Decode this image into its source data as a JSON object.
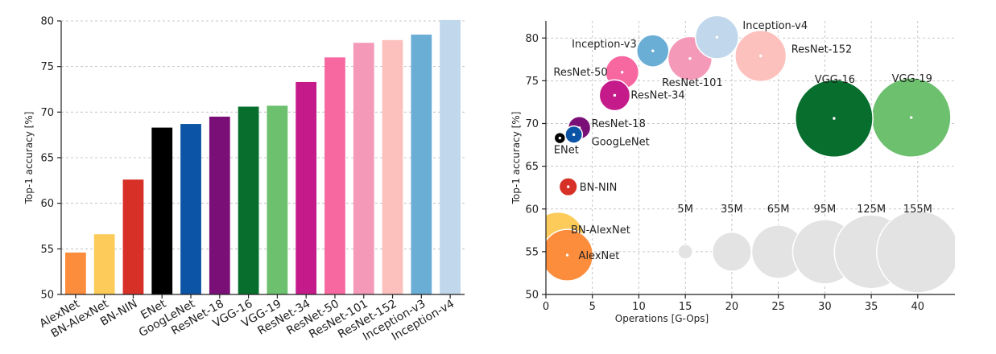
{
  "chart_data": [
    {
      "type": "bar",
      "xlabel": "",
      "ylabel": "Top-1 accuracy [%]",
      "ylim": [
        50,
        80
      ],
      "yticks": [
        50,
        55,
        60,
        65,
        70,
        75,
        80
      ],
      "grid": true,
      "categories": [
        "AlexNet",
        "BN-AlexNet",
        "BN-NIN",
        "ENet",
        "GoogLeNet",
        "ResNet-18",
        "VGG-16",
        "VGG-19",
        "ResNet-34",
        "ResNet-50",
        "ResNet-101",
        "ResNet-152",
        "Inception-v3",
        "Inception-v4"
      ],
      "values": [
        54.6,
        56.6,
        62.6,
        68.3,
        68.7,
        69.5,
        70.6,
        70.7,
        73.3,
        76.0,
        77.6,
        77.9,
        78.5,
        80.1
      ],
      "colors": [
        "#fb8d3d",
        "#fccb59",
        "#d73027",
        "#000000",
        "#0c54a5",
        "#7b0f78",
        "#076e2d",
        "#6cc06e",
        "#c51b8a",
        "#f768a1",
        "#f49ab8",
        "#fcc1bd",
        "#6aaed6",
        "#c1d8ec"
      ]
    },
    {
      "type": "scatter",
      "xlabel": "Operations [G-Ops]",
      "ylabel": "Top-1 accuracy [%]",
      "xlim": [
        0,
        44
      ],
      "ylim": [
        50,
        82
      ],
      "xticks": [
        0,
        5,
        10,
        15,
        20,
        25,
        30,
        35,
        40
      ],
      "yticks": [
        50,
        55,
        60,
        65,
        70,
        75,
        80
      ],
      "grid": true,
      "size_encoding": "parameters",
      "points": [
        {
          "name": "AlexNet",
          "x": 2.3,
          "y": 54.6,
          "params_m": 61,
          "color": "#fb8d3d"
        },
        {
          "name": "BN-AlexNet",
          "x": 1.3,
          "y": 56.6,
          "params_m": 62,
          "color": "#fccb59"
        },
        {
          "name": "BN-NIN",
          "x": 2.4,
          "y": 62.6,
          "params_m": 7.6,
          "color": "#d73027"
        },
        {
          "name": "ENet",
          "x": 1.5,
          "y": 68.3,
          "params_m": 0.4,
          "color": "#000000"
        },
        {
          "name": "GoogLeNet",
          "x": 3.0,
          "y": 68.7,
          "params_m": 6.8,
          "color": "#0c54a5"
        },
        {
          "name": "ResNet-18",
          "x": 3.6,
          "y": 69.5,
          "params_m": 11.7,
          "color": "#7b0f78"
        },
        {
          "name": "VGG-16",
          "x": 31.0,
          "y": 70.6,
          "params_m": 138,
          "color": "#076e2d"
        },
        {
          "name": "VGG-19",
          "x": 39.3,
          "y": 70.7,
          "params_m": 144,
          "color": "#6cc06e"
        },
        {
          "name": "ResNet-34",
          "x": 7.4,
          "y": 73.3,
          "params_m": 21.8,
          "color": "#c51b8a"
        },
        {
          "name": "ResNet-50",
          "x": 8.2,
          "y": 76.0,
          "params_m": 25.6,
          "color": "#f768a1"
        },
        {
          "name": "ResNet-101",
          "x": 15.5,
          "y": 77.6,
          "params_m": 44.5,
          "color": "#f49ab8"
        },
        {
          "name": "ResNet-152",
          "x": 23.1,
          "y": 77.9,
          "params_m": 60.2,
          "color": "#fcc1bd"
        },
        {
          "name": "Inception-v3",
          "x": 11.5,
          "y": 78.5,
          "params_m": 23.8,
          "color": "#6aaed6"
        },
        {
          "name": "Inception-v4",
          "x": 18.4,
          "y": 80.1,
          "params_m": 42.7,
          "color": "#c1d8ec"
        }
      ],
      "size_legend": [
        {
          "label": "5M",
          "x": 15,
          "y": 55,
          "params_m": 5
        },
        {
          "label": "35M",
          "x": 20,
          "y": 55,
          "params_m": 35
        },
        {
          "label": "65M",
          "x": 25,
          "y": 55,
          "params_m": 65
        },
        {
          "label": "95M",
          "x": 30,
          "y": 55,
          "params_m": 95
        },
        {
          "label": "125M",
          "x": 35,
          "y": 55,
          "params_m": 125
        },
        {
          "label": "155M",
          "x": 40,
          "y": 55,
          "params_m": 155
        }
      ]
    }
  ]
}
